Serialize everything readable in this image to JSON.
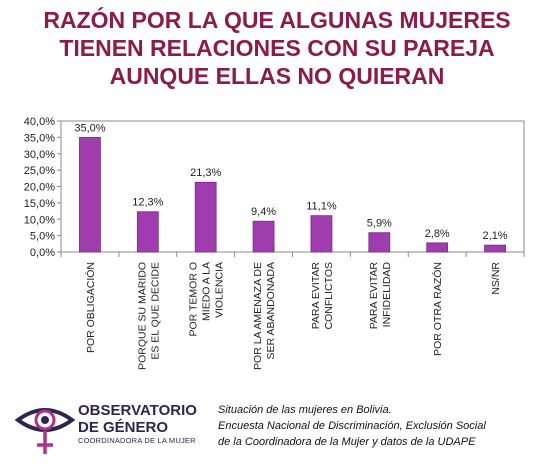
{
  "title_lines": [
    "RAZÓN POR LA QUE ALGUNAS MUJERES",
    "TIENEN RELACIONES CON SU PAREJA",
    "AUNQUE ELLAS NO QUIERAN"
  ],
  "colors": {
    "title": "#8c1a4b",
    "bar": "#a03dae",
    "bar_edge": "#7d2a8a",
    "logo": "#2e2450",
    "logo_accent": "#b0308c"
  },
  "chart_data": {
    "type": "bar",
    "categories": [
      [
        "POR OBLIGACIÓN"
      ],
      [
        "PORQUE SU MARIDO",
        "ES EL QUE DECIDE"
      ],
      [
        "POR TEMOR O",
        "MIEDO A LA",
        "VIOLENCIA"
      ],
      [
        "POR LA AMENAZA DE",
        "SER ABANDONADA"
      ],
      [
        "PARA EVITAR",
        "CONFLICTOS"
      ],
      [
        "PARA EVITAR",
        "INFIDELIDAD"
      ],
      [
        "POR OTRA RAZÓN"
      ],
      [
        "NS/NR"
      ]
    ],
    "values": [
      35.0,
      12.3,
      21.3,
      9.4,
      11.1,
      5.9,
      2.8,
      2.1
    ],
    "value_labels": [
      "35,0%",
      "12,3%",
      "21,3%",
      "9,4%",
      "11,1%",
      "5,9%",
      "2,8%",
      "2,1%"
    ],
    "yticks": [
      "0,0%",
      "5,0%",
      "10,0%",
      "15,0%",
      "20,0%",
      "25,0%",
      "30,0%",
      "35,0%",
      "40,0%"
    ],
    "ylim": [
      0,
      40
    ],
    "grid": false,
    "legend": "none"
  },
  "logo": {
    "line1": "OBSERVATORIO",
    "line2": "DE GÉNERO",
    "subtitle": "COORDINADORA DE LA MUJER",
    "icon": "eye-venus-icon"
  },
  "source_lines": [
    "Situación de las mujeres en Bolivia.",
    "Encuesta Nacional de Discriminación, Exclusión Social",
    "de la Coordinadora de la Mujer y datos de la UDAPE"
  ]
}
